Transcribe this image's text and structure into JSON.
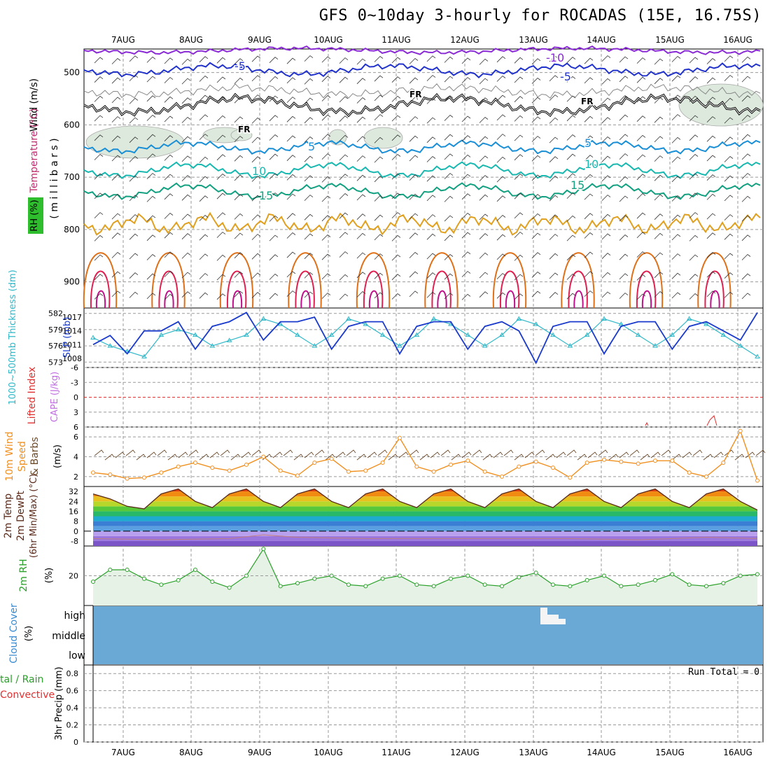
{
  "title": "GFS 0~10day 3-hourly for ROCADAS (15E, 16.75S)",
  "dates": [
    "7AUG",
    "8AUG",
    "9AUG",
    "10AUG",
    "11AUG",
    "12AUG",
    "13AUG",
    "14AUG",
    "15AUG",
    "16AUG"
  ],
  "panels": {
    "upper": {
      "ylabel": "( m i l l i b a r s )",
      "legend_wind": "Wind (m/s)",
      "legend_temp": "Temperature (°C)",
      "legend_rh": "RH (%)",
      "yticks": [
        500,
        600,
        700,
        800,
        900
      ],
      "contour_labels": {
        "t_m10": "-10",
        "t_m5": "-5",
        "t_5": "5",
        "t_10": "10",
        "t_15": "15",
        "fr": "FR",
        "rh_10": "10"
      }
    },
    "thickness": {
      "label_thk": "1000~500mb Thickness (dm)",
      "label_slp": "SLP (mb)",
      "yticks_left": [
        "582",
        "579",
        "576",
        "573"
      ],
      "yticks_right": [
        "1017",
        "1014",
        "1011",
        "1008"
      ]
    },
    "li": {
      "label_li": "Lifted Index",
      "label_cape": "CAPE (J/kg)",
      "yticks": [
        "-6",
        "-3",
        "0",
        "3",
        "6"
      ]
    },
    "wind10": {
      "label1": "10m Wind",
      "label2": "Speed",
      "label3": "& Barbs",
      "unit": "(m/s)",
      "yticks": [
        "6",
        "4",
        "2"
      ]
    },
    "temp2m": {
      "label1": "2m Temp",
      "label2": "2m DewPt",
      "label3": "(6hr Min/Max) (°C)",
      "yticks": [
        "32",
        "24",
        "16",
        "8",
        "0",
        "-8"
      ]
    },
    "rh2m": {
      "label": "2m RH",
      "unit": "(%)",
      "yticks": [
        "20"
      ]
    },
    "cloud": {
      "label": "Cloud Cover",
      "unit": "(%)",
      "levels": [
        "high",
        "middle",
        "low"
      ]
    },
    "precip": {
      "label1": "tal / Rain",
      "label2": "Convective",
      "ylabel": "3hr Precip (mm)",
      "yticks": [
        "0.8",
        "0.6",
        "0.4",
        "0.2",
        "0"
      ],
      "run_total": "Run Total = 0"
    }
  },
  "colors": {
    "temp_neg": "#2233cc",
    "temp_neg10": "#8a2bd6",
    "temp_5": "#1a8fd6",
    "temp_10": "#18b8b0",
    "temp_15": "#12a080",
    "temp_20": "#e0a020",
    "temp_25": "#e07018",
    "temp_30": "#e02050",
    "temp_35": "#c0108a",
    "rh_fill": "#dce9dc",
    "thk": "#30b8c8",
    "slp": "#1a3acc",
    "li": "#e03030",
    "cape": "#c070e0",
    "wind10": "#f09020",
    "cloud_bg": "#6aa9d6",
    "rh2m": "#2aa02a",
    "rh2m_fill": "#e6f2e6"
  },
  "chart_data": [
    {
      "type": "line",
      "name": "1000-500mb Thickness",
      "x_hours": [
        0,
        6,
        12,
        18,
        24,
        30,
        36,
        42,
        48,
        54,
        60,
        66,
        72,
        78,
        84,
        90,
        96,
        102,
        108,
        114,
        120,
        126,
        132,
        138,
        144,
        150,
        156,
        162,
        168,
        174,
        180,
        186,
        192,
        198,
        204,
        210,
        216,
        222,
        228,
        234
      ],
      "values": [
        577.5,
        576,
        575,
        574,
        578,
        579,
        578,
        576,
        577,
        578,
        581,
        580,
        578,
        576,
        578,
        581,
        580,
        578,
        576,
        578,
        581,
        580,
        578,
        576,
        578,
        581,
        580,
        578,
        576,
        578,
        581,
        580,
        578,
        576,
        578,
        581,
        580,
        578,
        576,
        574
      ],
      "ylim": [
        572,
        583
      ]
    },
    {
      "type": "line",
      "name": "SLP",
      "x_hours": [
        0,
        6,
        12,
        18,
        24,
        30,
        36,
        42,
        48,
        54,
        60,
        66,
        72,
        78,
        84,
        90,
        96,
        102,
        108,
        114,
        120,
        126,
        132,
        138,
        144,
        150,
        156,
        162,
        168,
        174,
        180,
        186,
        192,
        198,
        204,
        210,
        216,
        222,
        228,
        234
      ],
      "values": [
        1011,
        1013,
        1009,
        1014,
        1014,
        1016,
        1010,
        1015,
        1016,
        1018,
        1012,
        1016,
        1016,
        1017,
        1010,
        1015,
        1016,
        1016,
        1009,
        1015,
        1016,
        1016,
        1010,
        1015,
        1016,
        1014,
        1007,
        1015,
        1016,
        1016,
        1009,
        1015,
        1016,
        1016,
        1010,
        1015,
        1016,
        1014,
        1012,
        1018
      ],
      "ylim": [
        1006,
        1019
      ]
    },
    {
      "type": "line",
      "name": "10m Wind Speed",
      "x_hours": [
        0,
        6,
        12,
        18,
        24,
        30,
        36,
        42,
        48,
        54,
        60,
        66,
        72,
        78,
        84,
        90,
        96,
        102,
        108,
        114,
        120,
        126,
        132,
        138,
        144,
        150,
        156,
        162,
        168,
        174,
        180,
        186,
        192,
        198,
        204,
        210,
        216,
        222,
        228,
        234
      ],
      "values": [
        2.4,
        2.2,
        1.8,
        1.9,
        2.4,
        3.0,
        3.4,
        2.9,
        2.6,
        3.2,
        4.0,
        2.6,
        2.1,
        3.4,
        3.8,
        2.5,
        2.6,
        3.4,
        5.9,
        3.0,
        2.5,
        3.2,
        3.6,
        2.5,
        2.0,
        3.0,
        3.5,
        2.9,
        1.9,
        3.4,
        3.7,
        3.5,
        3.3,
        3.6,
        3.6,
        2.4,
        2.0,
        3.4,
        6.6,
        1.6
      ],
      "ylim": [
        1,
        7
      ]
    },
    {
      "type": "area",
      "name": "2m Temp",
      "x_hours": [
        0,
        6,
        12,
        18,
        24,
        30,
        36,
        42,
        48,
        54,
        60,
        66,
        72,
        78,
        84,
        90,
        96,
        102,
        108,
        114,
        120,
        126,
        132,
        138,
        144,
        150,
        156,
        162,
        168,
        174,
        180,
        186,
        192,
        198,
        204,
        210,
        216,
        222,
        228,
        234
      ],
      "values": [
        30,
        26,
        20,
        18,
        30,
        34,
        24,
        19,
        30,
        34,
        24,
        19,
        30,
        34,
        24,
        19,
        30,
        34,
        24,
        19,
        30,
        34,
        24,
        19,
        30,
        34,
        24,
        19,
        30,
        34,
        24,
        19,
        30,
        34,
        24,
        19,
        30,
        34,
        24,
        17
      ],
      "ylim": [
        -12,
        36
      ]
    },
    {
      "type": "line",
      "name": "2m DewPt",
      "x_hours": [
        0,
        24,
        48,
        60,
        72,
        96,
        120,
        144,
        168,
        192,
        216,
        234
      ],
      "values": [
        -6,
        -7,
        -6,
        -3,
        -5,
        -6,
        -6,
        -6,
        -6,
        -7,
        -5,
        -6
      ],
      "ylim": [
        -12,
        36
      ]
    },
    {
      "type": "line",
      "name": "2m RH",
      "x_hours": [
        0,
        6,
        12,
        18,
        24,
        30,
        36,
        42,
        48,
        54,
        60,
        66,
        72,
        78,
        84,
        90,
        96,
        102,
        108,
        114,
        120,
        126,
        132,
        138,
        144,
        150,
        156,
        162,
        168,
        174,
        180,
        186,
        192,
        198,
        204,
        210,
        216,
        222,
        228,
        234
      ],
      "values": [
        16,
        24,
        24,
        18,
        14,
        17,
        24,
        16,
        12,
        20,
        38,
        13,
        15,
        18,
        20,
        14,
        13,
        18,
        20,
        14,
        13,
        18,
        20,
        14,
        13,
        19,
        22,
        14,
        13,
        17,
        20,
        13,
        14,
        17,
        21,
        14,
        13,
        15,
        20,
        21
      ],
      "ylim": [
        0,
        40
      ]
    },
    {
      "type": "bar",
      "name": "3hr Precip",
      "categories": [
        "7AUG",
        "8AUG",
        "9AUG",
        "10AUG",
        "11AUG",
        "12AUG",
        "13AUG",
        "14AUG",
        "15AUG",
        "16AUG"
      ],
      "values": [
        0,
        0,
        0,
        0,
        0,
        0,
        0,
        0,
        0,
        0
      ],
      "ylim": [
        0,
        0.9
      ]
    }
  ]
}
